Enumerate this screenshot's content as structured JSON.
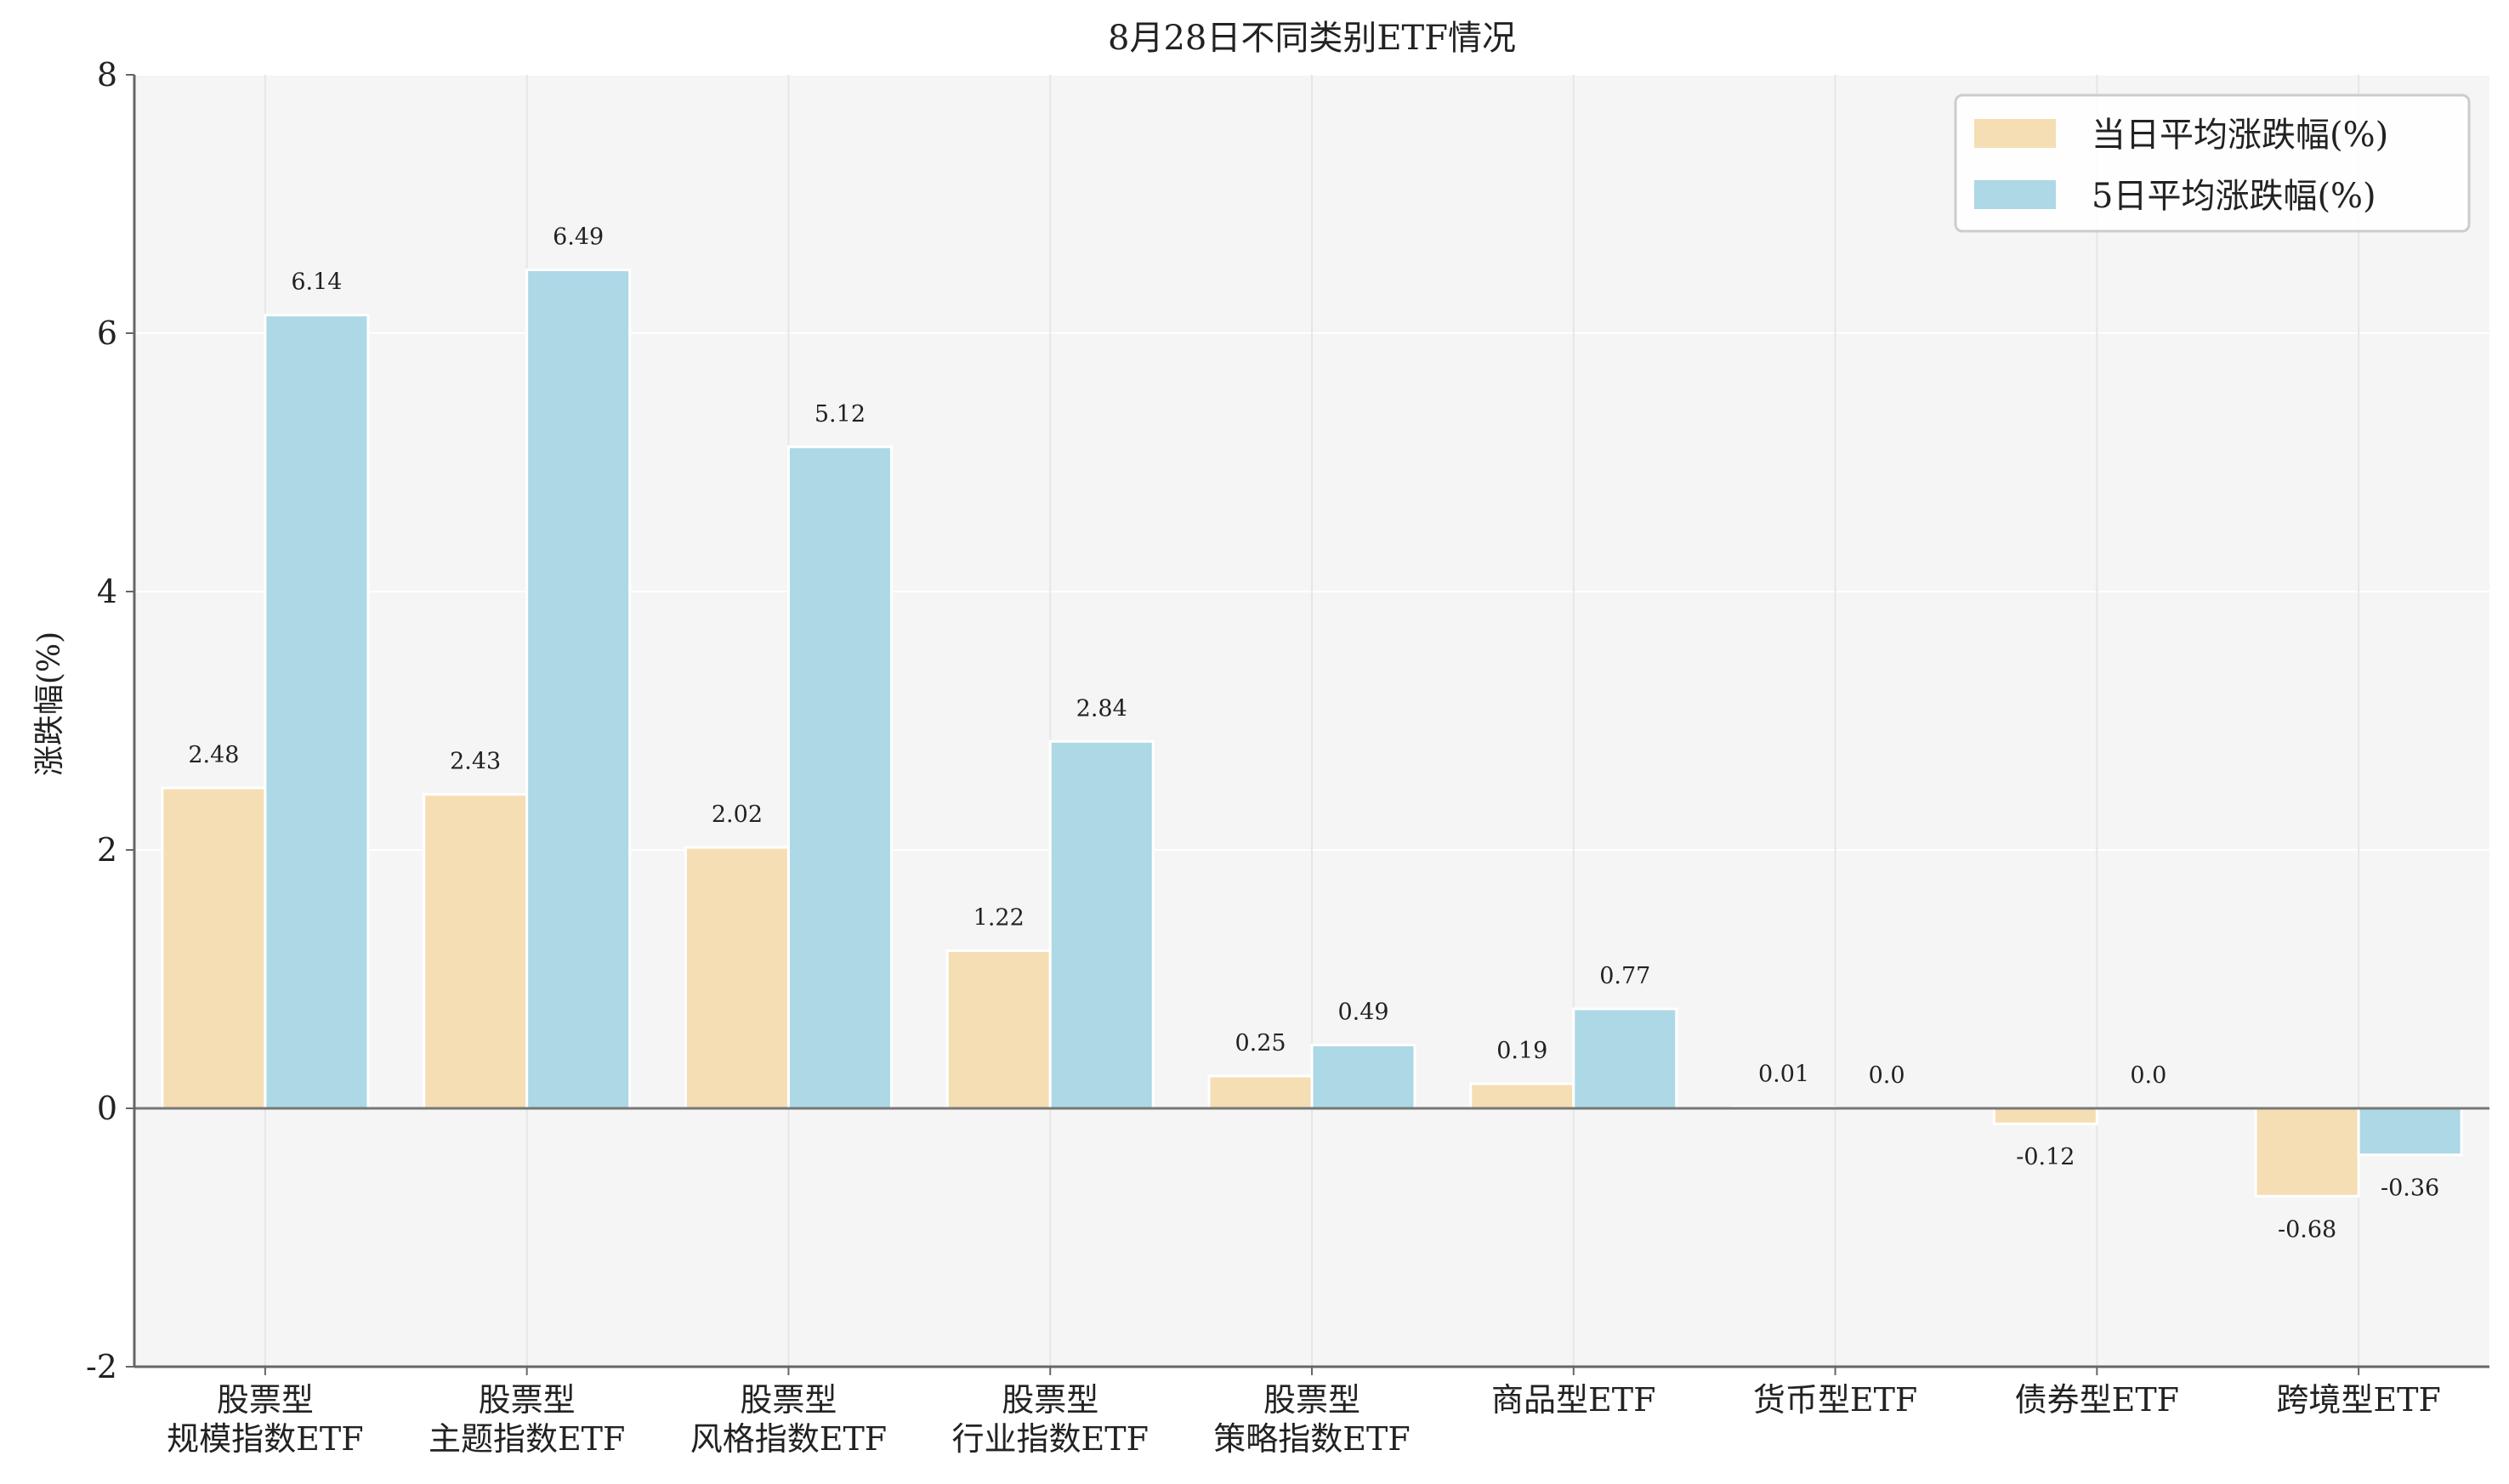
{
  "chart_data": {
    "type": "bar",
    "title": "8月28日不同类别ETF情况",
    "ylabel": "涨跌幅(%)",
    "xlabel": "",
    "ylim": [
      -2,
      8
    ],
    "yticks": [
      -2,
      0,
      2,
      4,
      6,
      8
    ],
    "grid": true,
    "legend_position": "top-right",
    "categories": [
      [
        "股票型",
        "规模指数ETF"
      ],
      [
        "股票型",
        "主题指数ETF"
      ],
      [
        "股票型",
        "风格指数ETF"
      ],
      [
        "股票型",
        "行业指数ETF"
      ],
      [
        "股票型",
        "策略指数ETF"
      ],
      [
        "商品型ETF"
      ],
      [
        "货币型ETF"
      ],
      [
        "债券型ETF"
      ],
      [
        "跨境型ETF"
      ]
    ],
    "series": [
      {
        "name": "当日平均涨跌幅(%)",
        "color": "#f5deb3",
        "values": [
          2.48,
          2.43,
          2.02,
          1.22,
          0.25,
          0.19,
          0.01,
          -0.12,
          -0.68
        ],
        "labels": [
          "2.48",
          "2.43",
          "2.02",
          "1.22",
          "0.25",
          "0.19",
          "0.01",
          "-0.12",
          "-0.68"
        ]
      },
      {
        "name": "5日平均涨跌幅(%)",
        "color": "#add8e6",
        "values": [
          6.14,
          6.49,
          5.12,
          2.84,
          0.49,
          0.77,
          0.0,
          0.0,
          -0.36
        ],
        "labels": [
          "6.14",
          "6.49",
          "5.12",
          "2.84",
          "0.49",
          "0.77",
          "0.0",
          "0.0",
          "-0.36"
        ]
      }
    ],
    "colors": {
      "plot_background": "#f5f5f5",
      "grid": "#e6e6e6",
      "axis": "#666666",
      "zero_line": "#777777"
    }
  }
}
